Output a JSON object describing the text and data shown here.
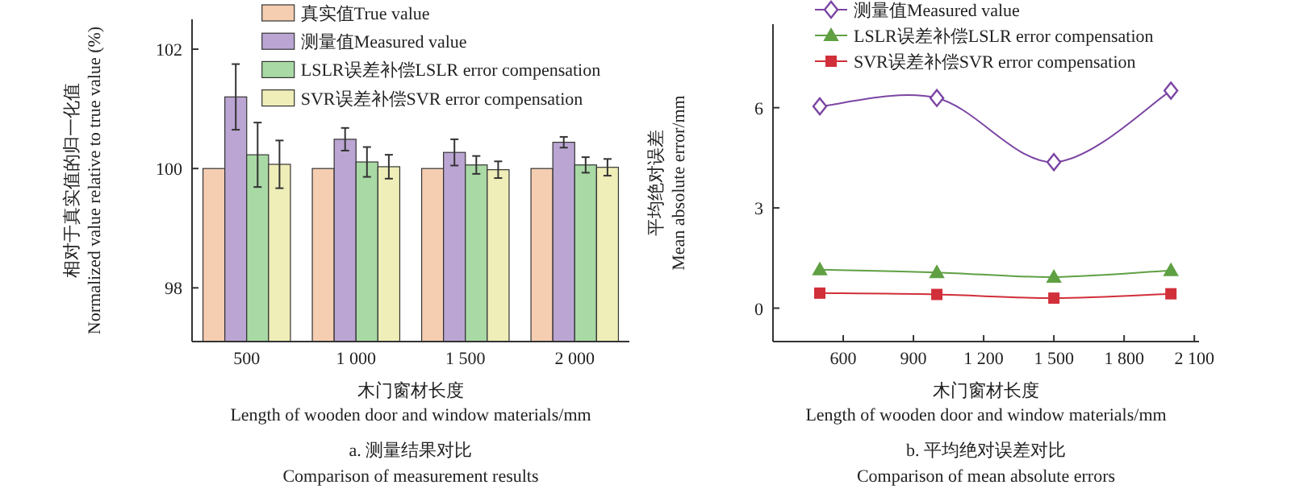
{
  "chart_data": [
    {
      "type": "bar",
      "title": "a. 测量结果对比",
      "subtitle": "Comparison of measurement results",
      "xlabel": "木门窗材长度\nLength of wooden door and window materials/mm",
      "ylabel": "相对于真实值的归一化值\nNormalized value relative to true value (%)",
      "categories": [
        "500",
        "1 000",
        "1 500",
        "2 000"
      ],
      "ylim": [
        97.1,
        102.5
      ],
      "yticks": [
        98,
        100,
        102
      ],
      "legend": "top",
      "grid": false,
      "series": [
        {
          "name": "真实值True value",
          "color": "#f5cdb0",
          "values": [
            100,
            100,
            100,
            100
          ]
        },
        {
          "name": "测量值Measured value",
          "color": "#bba5d3",
          "values": [
            101.2,
            100.49,
            100.27,
            100.44
          ],
          "errors": [
            0.55,
            0.19,
            0.22,
            0.09
          ]
        },
        {
          "name": "LSLR误差补偿LSLR error compensation",
          "color": "#a9d9a5",
          "values": [
            100.23,
            100.11,
            100.06,
            100.06
          ],
          "errors": [
            0.54,
            0.25,
            0.15,
            0.13
          ]
        },
        {
          "name": "SVR误差补偿SVR error compensation",
          "color": "#efeeb8",
          "values": [
            100.07,
            100.03,
            99.98,
            100.02
          ],
          "errors": [
            0.4,
            0.2,
            0.14,
            0.14
          ]
        }
      ]
    },
    {
      "type": "line",
      "title": "b. 平均绝对误差对比",
      "subtitle": "Comparison of mean absolute errors",
      "xlabel": "木门窗材长度\nLength of wooden door and window materials/mm",
      "ylabel": "平均绝对误差\nMean absolute error/mm",
      "x": [
        500,
        1000,
        1500,
        2000
      ],
      "xlim": [
        300,
        2120
      ],
      "xticks": [
        {
          "value": 600,
          "label": "600"
        },
        {
          "value": 900,
          "label": "900"
        },
        {
          "value": 1200,
          "label": "1 200"
        },
        {
          "value": 1500,
          "label": "1 500"
        },
        {
          "value": 1800,
          "label": "1 800"
        },
        {
          "value": 2100,
          "label": "2 100"
        }
      ],
      "ylim": [
        -1,
        8.5
      ],
      "yticks": [
        0,
        3,
        6
      ],
      "legend": "top left",
      "grid": false,
      "series": [
        {
          "name": "测量值Measured value",
          "color": "#7b45a3",
          "marker": "diamond",
          "values": [
            6.04,
            6.29,
            4.37,
            6.51
          ]
        },
        {
          "name": "LSLR误差补偿LSLR error compensation",
          "color": "#5fa043",
          "marker": "triangle",
          "values": [
            1.15,
            1.07,
            0.93,
            1.13
          ]
        },
        {
          "name": "SVR误差补偿SVR error compensation",
          "color": "#d12f3a",
          "marker": "square",
          "values": [
            0.45,
            0.41,
            0.3,
            0.43
          ]
        }
      ]
    }
  ]
}
